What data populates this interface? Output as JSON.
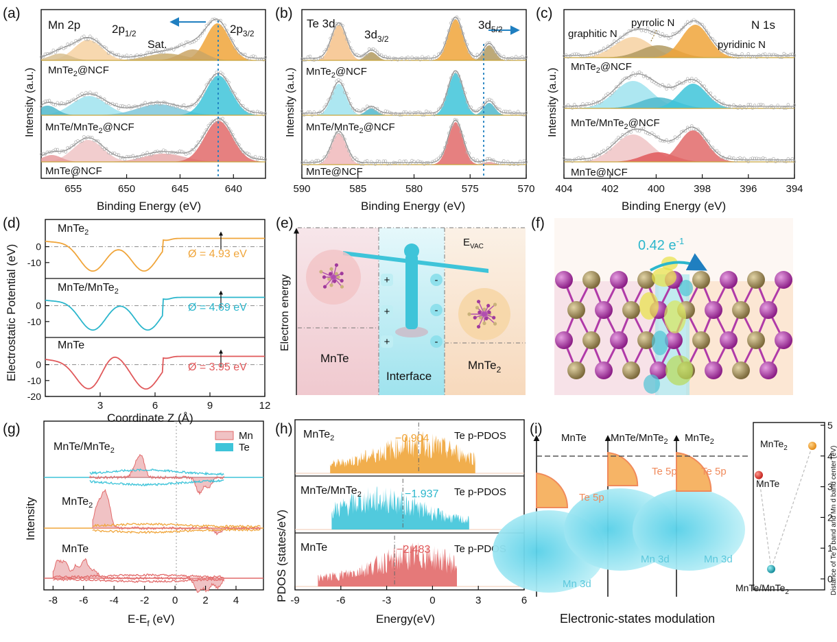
{
  "colors": {
    "orange": "#f0a53a",
    "cyan": "#3ec4d9",
    "red": "#e26a6a",
    "pink": "#e9a9ab",
    "olive": "#b29a60",
    "blue_arrow": "#1f7fc0",
    "purple": "#a03a9c",
    "gold": "#a89566"
  },
  "panel_labels": [
    "(a)",
    "(b)",
    "(c)",
    "(d)",
    "(e)",
    "(f)",
    "(g)",
    "(h)",
    "(i)"
  ],
  "panel_a": {
    "title": "Mn 2p",
    "peak1_main": "2p",
    "peak1_sub": "1/2",
    "peak2_main": "2p",
    "peak2_sub": "3/2",
    "sat": "Sat.",
    "samples": [
      {
        "pre": "MnTe",
        "sub": "2",
        "post": "@NCF"
      },
      {
        "pre": "MnTe/MnTe",
        "sub": "2",
        "post": "@NCF"
      },
      {
        "pre": "MnTe@NCF",
        "sub": "",
        "post": ""
      }
    ]
  },
  "panel_b": {
    "title": "Te 3d",
    "peak1_main": "3d",
    "peak1_sub": "3/2",
    "peak2_main": "3d",
    "peak2_sub": "5/2",
    "samples": [
      {
        "pre": "MnTe",
        "sub": "2",
        "post": "@NCF"
      },
      {
        "pre": "MnTe/MnTe",
        "sub": "2",
        "post": "@NCF"
      },
      {
        "pre": "MnTe@NCF",
        "sub": "",
        "post": ""
      }
    ]
  },
  "panel_c": {
    "title": "N 1s",
    "graphitic": "graphitic N",
    "pyrrolic": "pyrrolic N",
    "pyridinic": "pyridinic N",
    "samples": [
      {
        "pre": "MnTe",
        "sub": "2",
        "post": "@NCF"
      },
      {
        "pre": "MnTe/MnTe",
        "sub": "2",
        "post": "@NCF"
      },
      {
        "pre": "MnTe@NCF",
        "sub": "",
        "post": ""
      }
    ]
  },
  "panel_d": {
    "ylabel": "Electrostatic Potential (eV)",
    "xlabel": "Coordinate Z (Å)",
    "phi_symbol": "Ø",
    "curves": [
      {
        "pre": "MnTe",
        "sub": "2",
        "phi": "Ø = 4.93 eV"
      },
      {
        "pre": "MnTe/MnTe",
        "sub": "2",
        "phi": "Ø = 4.69 eV"
      },
      {
        "pre": "MnTe",
        "sub": "",
        "phi": "Ø = 3.95 eV"
      }
    ]
  },
  "panel_e": {
    "ylabel": "Electron energy",
    "evac_main": "E",
    "evac_sub": "VAC",
    "left": "MnTe",
    "middle": "Interface",
    "right_pre": "MnTe",
    "right_sub": "2",
    "plus": "+",
    "minus": "-"
  },
  "panel_f": {
    "charge": "0.42 e",
    "charge_sup": "-1"
  },
  "panel_g": {
    "ylabel": "Intensity",
    "xlabel_main": "E-E",
    "xlabel_sub": "f",
    "xlabel_unit": " (eV)",
    "legend": [
      "Mn",
      "Te"
    ],
    "samples": [
      {
        "pre": "MnTe/MnTe",
        "sub": "2"
      },
      {
        "pre": "MnTe",
        "sub": "2"
      },
      {
        "pre": "MnTe",
        "sub": ""
      }
    ]
  },
  "panel_h": {
    "ylabel": "PDOS (states/eV)",
    "xlabel": "Energy(eV)",
    "tag": "Te p-PDOS",
    "samples": [
      {
        "pre": "MnTe",
        "sub": "2",
        "center": "−0.904"
      },
      {
        "pre": "MnTe/MnTe",
        "sub": "2",
        "center": "−1.937"
      },
      {
        "pre": "MnTe",
        "sub": "",
        "center": "−2.483"
      }
    ]
  },
  "panel_i": {
    "xlabel": "Electronic-states modulation",
    "te5p": "Te 5p",
    "mn3d": "Mn 3d",
    "columns": [
      {
        "pre": "MnTe",
        "sub": ""
      },
      {
        "pre": "MnTe/MnTe",
        "sub": "2"
      },
      {
        "pre": "MnTe",
        "sub": "2"
      }
    ],
    "scatter_ylabel": "Distance of Te p band and Mn d band center (eV)",
    "points": [
      {
        "pre": "MnTe",
        "sub": "",
        "value": 3.38
      },
      {
        "pre": "MnTe/MnTe",
        "sub": "2",
        "value": 0.32
      },
      {
        "pre": "MnTe",
        "sub": "2",
        "value": 4.33
      }
    ]
  },
  "chart_data": [
    {
      "type": "line",
      "panel": "a",
      "title": "Mn 2p",
      "xlabel": "Binding Energy (eV)",
      "ylabel": "Intensity (a.u.)",
      "xlim": [
        658,
        637
      ],
      "x_ticks": [
        655,
        650,
        645,
        640
      ],
      "peak_positions": {
        "2p1/2": 653.5,
        "Sat.": 646.5,
        "2p3/2": 641.5
      },
      "series": [
        "MnTe2@NCF",
        "MnTe/MnTe2@NCF",
        "MnTe@NCF"
      ]
    },
    {
      "type": "line",
      "panel": "b",
      "title": "Te 3d",
      "xlabel": "Binding Energy (eV)",
      "ylabel": "Intensity (a.u.)",
      "xlim": [
        590,
        570
      ],
      "x_ticks": [
        590,
        585,
        580,
        575,
        570
      ],
      "peak_positions": {
        "3d3/2": 586.7,
        "3d3/2 ox": 583.8,
        "3d5/2": 576.3,
        "3d5/2 ox": 573.3
      },
      "series": [
        "MnTe2@NCF",
        "MnTe/MnTe2@NCF",
        "MnTe@NCF"
      ]
    },
    {
      "type": "line",
      "panel": "c",
      "title": "N 1s",
      "xlabel": "Binding Energy (eV)",
      "ylabel": "Intensity (a.u.)",
      "xlim": [
        404,
        394
      ],
      "x_ticks": [
        404,
        402,
        400,
        398,
        396,
        394
      ],
      "peak_positions": {
        "graphitic N": 401.0,
        "pyrrolic N": 399.9,
        "pyridinic N": 398.3
      },
      "series": [
        "MnTe2@NCF",
        "MnTe/MnTe2@NCF",
        "MnTe@NCF"
      ]
    },
    {
      "type": "line",
      "panel": "d",
      "xlabel": "Coordinate Z (Å)",
      "ylabel": "Electrostatic Potential (eV)",
      "xlim": [
        0,
        12
      ],
      "x_ticks": [
        3,
        6,
        9,
        12
      ],
      "ylim": [
        -20,
        7
      ],
      "y_ticks": [
        0,
        -10,
        -20
      ],
      "series": [
        {
          "name": "MnTe2",
          "work_function": 4.93,
          "minima_x": [
            2.6,
            5.4
          ],
          "minimum": -15.5
        },
        {
          "name": "MnTe/MnTe2",
          "work_function": 4.69,
          "minima_x": [
            2.6,
            5.6
          ],
          "minimum": -15
        },
        {
          "name": "MnTe",
          "work_function": 3.95,
          "minima_x": [
            2.4,
            5.5
          ],
          "minimum": -15.5
        }
      ]
    },
    {
      "type": "area",
      "panel": "g",
      "xlabel": "E-Ef (eV)",
      "ylabel": "Intensity",
      "xlim": [
        -8.6,
        5.8
      ],
      "x_ticks": [
        -8,
        -6,
        -4,
        -2,
        0,
        2,
        4
      ],
      "legend": [
        "Mn",
        "Te"
      ],
      "series": [
        "MnTe/MnTe2",
        "MnTe2",
        "MnTe"
      ]
    },
    {
      "type": "area",
      "panel": "h",
      "xlabel": "Energy(eV)",
      "ylabel": "PDOS (states/eV)",
      "xlim": [
        -9,
        6
      ],
      "x_ticks": [
        -9,
        -6,
        -3,
        0,
        3,
        6
      ],
      "series": [
        {
          "name": "MnTe2",
          "p_band_center": -0.904
        },
        {
          "name": "MnTe/MnTe2",
          "p_band_center": -1.937
        },
        {
          "name": "MnTe",
          "p_band_center": -2.483
        }
      ]
    },
    {
      "type": "scatter",
      "panel": "i",
      "ylabel": "Distance of Te p band and Mn d band center (eV)",
      "ylim": [
        0,
        5
      ],
      "y_ticks": [
        0,
        1,
        2,
        3,
        4,
        5
      ],
      "categories": [
        "MnTe",
        "MnTe/MnTe2",
        "MnTe2"
      ],
      "values": [
        3.38,
        0.32,
        4.33
      ]
    }
  ]
}
